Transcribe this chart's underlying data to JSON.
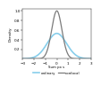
{
  "title": "",
  "ylabel": "Density",
  "xlabel": "Sum px s",
  "xlim": [
    -3,
    3
  ],
  "ylim": [
    0,
    1.05
  ],
  "yticks": [
    0.2,
    0.4,
    0.6,
    0.8,
    1.0
  ],
  "xticks": [
    -3,
    -2,
    -1,
    0,
    1,
    2,
    3
  ],
  "ordinary_color": "#87CEEB",
  "confocal_color": "#7a7a7a",
  "ordinary_sigma": 0.85,
  "confocal_sigma": 0.45,
  "ordinary_label": "ordinary",
  "confocal_label": "confocal",
  "background_color": "#ffffff",
  "linewidth_ordinary": 1.2,
  "linewidth_confocal": 0.9
}
